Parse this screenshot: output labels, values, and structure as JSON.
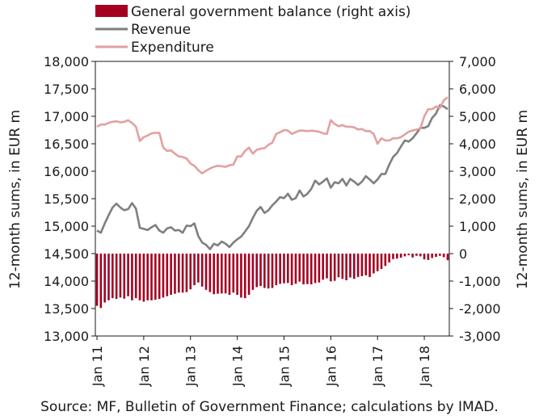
{
  "chart_data": {
    "type": "bar+line",
    "legend": [
      {
        "label": "General government balance (right axis)",
        "kind": "bar",
        "color": "#a50021"
      },
      {
        "label": "Revenue",
        "kind": "line",
        "color": "#7f7f7f"
      },
      {
        "label": "Expenditure",
        "kind": "line",
        "color": "#e3a0a0"
      }
    ],
    "ylabel_left": "12-month sums, in EUR m",
    "ylabel_right": "12-month sums, in EUR m",
    "ylim_left": [
      13000,
      18000
    ],
    "ylim_right": [
      -3000,
      7000
    ],
    "yticks_left": [
      "13,000",
      "13,500",
      "14,000",
      "14,500",
      "15,000",
      "15,500",
      "16,000",
      "16,500",
      "17,000",
      "17,500",
      "18,000"
    ],
    "yticks_right": [
      "-3,000",
      "-2,000",
      "-1,000",
      "0",
      "1,000",
      "2,000",
      "3,000",
      "4,000",
      "5,000",
      "6,000",
      "7,000"
    ],
    "x_tick_labels": [
      "Jan 11",
      "Jan 12",
      "Jan 13",
      "Jan 14",
      "Jan 15",
      "Jan 16",
      "Jan 17",
      "Jan 18"
    ],
    "grid": false,
    "months_start": "2011-01",
    "months_end": "2018-05",
    "series": [
      {
        "name": "Revenue",
        "axis": "left",
        "values": [
          14920,
          14880,
          15050,
          15200,
          15340,
          15410,
          15340,
          15290,
          15310,
          15420,
          15320,
          14970,
          14950,
          14930,
          14980,
          15020,
          14920,
          14880,
          14960,
          14980,
          14920,
          14930,
          14880,
          15010,
          15000,
          15050,
          14820,
          14700,
          14660,
          14580,
          14680,
          14650,
          14720,
          14680,
          14620,
          14700,
          14760,
          14810,
          14900,
          15000,
          15150,
          15280,
          15350,
          15240,
          15290,
          15380,
          15450,
          15530,
          15510,
          15590,
          15480,
          15510,
          15650,
          15540,
          15590,
          15680,
          15830,
          15760,
          15810,
          15870,
          15700,
          15800,
          15780,
          15860,
          15740,
          15860,
          15810,
          15750,
          15810,
          15910,
          15850,
          15780,
          15850,
          15950,
          15950,
          16120,
          16260,
          16330,
          16450,
          16560,
          16540,
          16600,
          16690,
          16790,
          16790,
          16820,
          16970,
          17050,
          17200,
          17180,
          17130
        ]
      },
      {
        "name": "Expenditure",
        "axis": "left",
        "values": [
          16810,
          16850,
          16850,
          16880,
          16900,
          16910,
          16890,
          16900,
          16930,
          16880,
          16810,
          16550,
          16620,
          16650,
          16690,
          16700,
          16700,
          16430,
          16370,
          16380,
          16320,
          16270,
          16260,
          16230,
          16140,
          16100,
          16020,
          15960,
          16010,
          16050,
          16080,
          16100,
          16090,
          16080,
          16110,
          16120,
          16270,
          16270,
          16370,
          16430,
          16320,
          16390,
          16410,
          16420,
          16480,
          16520,
          16680,
          16710,
          16750,
          16740,
          16680,
          16710,
          16740,
          16740,
          16730,
          16740,
          16730,
          16720,
          16690,
          16680,
          16930,
          16860,
          16820,
          16840,
          16810,
          16810,
          16800,
          16760,
          16770,
          16730,
          16730,
          16680,
          16500,
          16600,
          16560,
          16560,
          16600,
          16600,
          16620,
          16670,
          16720,
          16740,
          16760,
          16780,
          17000,
          17130,
          17130,
          17180,
          17150,
          17290,
          17350
        ]
      },
      {
        "name": "General government balance (right axis)",
        "axis": "right",
        "kind": "bar",
        "values": [
          -1900,
          -1980,
          -1780,
          -1700,
          -1620,
          -1650,
          -1600,
          -1640,
          -1550,
          -1700,
          -1620,
          -1700,
          -1750,
          -1700,
          -1700,
          -1680,
          -1650,
          -1600,
          -1550,
          -1500,
          -1460,
          -1420,
          -1420,
          -1400,
          -1300,
          -1150,
          -1050,
          -1200,
          -1320,
          -1400,
          -1480,
          -1460,
          -1450,
          -1450,
          -1500,
          -1420,
          -1500,
          -1600,
          -1620,
          -1500,
          -1320,
          -1220,
          -1180,
          -1250,
          -1270,
          -1250,
          -1150,
          -1100,
          -1080,
          -1070,
          -1150,
          -1100,
          -1020,
          -1120,
          -1110,
          -1120,
          -1070,
          -1050,
          -950,
          -900,
          -1010,
          -990,
          -860,
          -920,
          -970,
          -870,
          -920,
          -850,
          -820,
          -790,
          -850,
          -720,
          -640,
          -560,
          -450,
          -320,
          -200,
          -180,
          -150,
          -100,
          -60,
          -140,
          -80,
          -100,
          -210,
          -230,
          -160,
          -120,
          -80,
          -130,
          -240
        ]
      }
    ]
  },
  "source": "Source: MF, Bulletin of Government Finance; calculations by IMAD."
}
